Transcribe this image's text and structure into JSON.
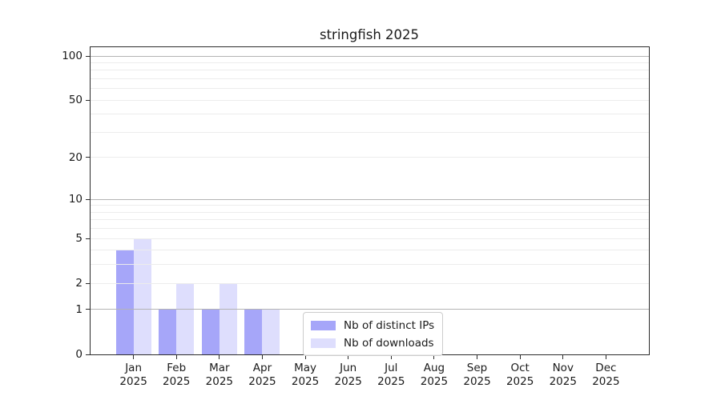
{
  "chart_data": {
    "type": "bar",
    "title": "stringfish 2025",
    "x": {
      "categories": [
        "Jan",
        "Feb",
        "Mar",
        "Apr",
        "May",
        "Jun",
        "Jul",
        "Aug",
        "Sep",
        "Oct",
        "Nov",
        "Dec"
      ],
      "year": "2025"
    },
    "series": [
      {
        "name": "Nb of distinct IPs",
        "color": "rgba(32,32,240,0.4)",
        "values": [
          4,
          1,
          1,
          1,
          0,
          0,
          0,
          0,
          0,
          0,
          0,
          0
        ]
      },
      {
        "name": "Nb of downloads",
        "color": "rgba(32,32,240,0.15)",
        "values": [
          5,
          2,
          2,
          1,
          0,
          0,
          0,
          0,
          0,
          0,
          0,
          0
        ]
      }
    ],
    "yaxis": {
      "scale": "log1p",
      "ticks": [
        0,
        1,
        2,
        5,
        10,
        20,
        50,
        100
      ],
      "ylim": [
        0,
        115
      ]
    },
    "grid": {
      "minor_values": [
        2,
        3,
        4,
        5,
        6,
        7,
        8,
        9,
        20,
        30,
        40,
        50,
        60,
        70,
        80,
        90
      ],
      "major_values": [
        1,
        10,
        100
      ],
      "minor_color": "#ececec",
      "major_color": "#b4b4b4"
    },
    "legend_position": "lower center"
  }
}
